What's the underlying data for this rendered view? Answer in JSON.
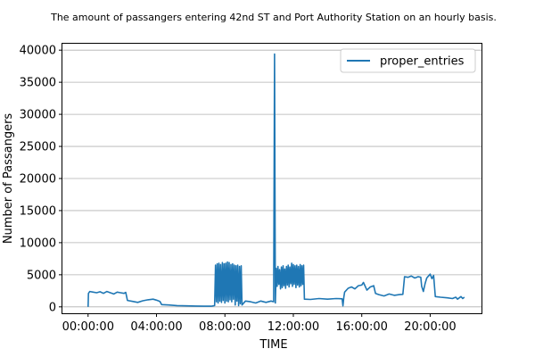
{
  "chart_data": {
    "type": "line",
    "title": "The amount of passangers entering 42nd ST and Port Authority Station on an hourly basis.",
    "xlabel": "TIME",
    "ylabel": "Number of Passangers",
    "xlim_hours": [
      -1.5,
      23.0
    ],
    "ylim": [
      -1000,
      41000
    ],
    "x_ticks": [
      {
        "hour": 0,
        "label": "00:00:00"
      },
      {
        "hour": 4,
        "label": "04:00:00"
      },
      {
        "hour": 8,
        "label": "08:00:00"
      },
      {
        "hour": 12,
        "label": "12:00:00"
      },
      {
        "hour": 16,
        "label": "16:00:00"
      },
      {
        "hour": 20,
        "label": "20:00:00"
      }
    ],
    "y_ticks": [
      {
        "value": 0,
        "label": "0"
      },
      {
        "value": 5000,
        "label": "5000"
      },
      {
        "value": 10000,
        "label": "10000"
      },
      {
        "value": 15000,
        "label": "15000"
      },
      {
        "value": 20000,
        "label": "20000"
      },
      {
        "value": 25000,
        "label": "25000"
      },
      {
        "value": 30000,
        "label": "30000"
      },
      {
        "value": 35000,
        "label": "35000"
      },
      {
        "value": 40000,
        "label": "40000"
      }
    ],
    "grid": "horizontal",
    "legend_position": "top-right",
    "series": [
      {
        "name": "proper_entries",
        "color": "#1f77b4",
        "points": [
          [
            0.0,
            0
          ],
          [
            0.02,
            2100
          ],
          [
            0.1,
            2400
          ],
          [
            0.3,
            2300
          ],
          [
            0.5,
            2200
          ],
          [
            0.7,
            2350
          ],
          [
            0.9,
            2100
          ],
          [
            1.1,
            2400
          ],
          [
            1.3,
            2200
          ],
          [
            1.5,
            2000
          ],
          [
            1.7,
            2300
          ],
          [
            1.9,
            2200
          ],
          [
            2.1,
            2100
          ],
          [
            2.2,
            2250
          ],
          [
            2.3,
            1000
          ],
          [
            2.6,
            850
          ],
          [
            2.9,
            700
          ],
          [
            3.2,
            950
          ],
          [
            3.5,
            1100
          ],
          [
            3.8,
            1200
          ],
          [
            4.0,
            1050
          ],
          [
            4.2,
            850
          ],
          [
            4.3,
            350
          ],
          [
            4.7,
            300
          ],
          [
            5.2,
            200
          ],
          [
            5.8,
            150
          ],
          [
            6.3,
            120
          ],
          [
            6.8,
            100
          ],
          [
            7.2,
            100
          ],
          [
            7.4,
            200
          ],
          [
            7.45,
            6500
          ],
          [
            7.5,
            800
          ],
          [
            7.55,
            6700
          ],
          [
            7.6,
            600
          ],
          [
            7.65,
            6800
          ],
          [
            7.7,
            900
          ],
          [
            7.75,
            6600
          ],
          [
            7.8,
            700
          ],
          [
            7.85,
            6900
          ],
          [
            7.9,
            1000
          ],
          [
            7.95,
            6700
          ],
          [
            8.0,
            600
          ],
          [
            8.05,
            6800
          ],
          [
            8.1,
            900
          ],
          [
            8.15,
            7000
          ],
          [
            8.2,
            800
          ],
          [
            8.25,
            6900
          ],
          [
            8.3,
            1100
          ],
          [
            8.35,
            6600
          ],
          [
            8.4,
            800
          ],
          [
            8.45,
            6700
          ],
          [
            8.5,
            1200
          ],
          [
            8.55,
            6500
          ],
          [
            8.6,
            300
          ],
          [
            8.65,
            6400
          ],
          [
            8.7,
            900
          ],
          [
            8.75,
            6500
          ],
          [
            8.8,
            200
          ],
          [
            8.85,
            6300
          ],
          [
            8.9,
            500
          ],
          [
            8.95,
            6400
          ],
          [
            9.0,
            300
          ],
          [
            9.2,
            900
          ],
          [
            9.5,
            800
          ],
          [
            9.8,
            600
          ],
          [
            10.1,
            900
          ],
          [
            10.4,
            700
          ],
          [
            10.7,
            900
          ],
          [
            10.85,
            800
          ],
          [
            10.9,
            39400
          ],
          [
            10.95,
            600
          ],
          [
            11.0,
            6000
          ],
          [
            11.05,
            3200
          ],
          [
            11.1,
            6300
          ],
          [
            11.15,
            3500
          ],
          [
            11.2,
            5800
          ],
          [
            11.25,
            2800
          ],
          [
            11.3,
            6200
          ],
          [
            11.35,
            3000
          ],
          [
            11.4,
            6400
          ],
          [
            11.45,
            3300
          ],
          [
            11.5,
            5900
          ],
          [
            11.55,
            2900
          ],
          [
            11.6,
            6300
          ],
          [
            11.65,
            3400
          ],
          [
            11.7,
            6500
          ],
          [
            11.75,
            3100
          ],
          [
            11.8,
            6200
          ],
          [
            11.85,
            3600
          ],
          [
            11.9,
            6800
          ],
          [
            11.95,
            3200
          ],
          [
            12.0,
            6600
          ],
          [
            12.05,
            3500
          ],
          [
            12.1,
            6400
          ],
          [
            12.15,
            3000
          ],
          [
            12.2,
            6500
          ],
          [
            12.25,
            3400
          ],
          [
            12.3,
            6300
          ],
          [
            12.35,
            3100
          ],
          [
            12.4,
            6600
          ],
          [
            12.45,
            3300
          ],
          [
            12.5,
            6400
          ],
          [
            12.55,
            3500
          ],
          [
            12.6,
            6500
          ],
          [
            12.65,
            1200
          ],
          [
            13.0,
            1150
          ],
          [
            13.5,
            1300
          ],
          [
            14.0,
            1200
          ],
          [
            14.5,
            1300
          ],
          [
            14.85,
            1250
          ],
          [
            14.9,
            150
          ],
          [
            14.95,
            1500
          ],
          [
            15.0,
            2300
          ],
          [
            15.2,
            2900
          ],
          [
            15.4,
            3100
          ],
          [
            15.6,
            2800
          ],
          [
            15.8,
            3300
          ],
          [
            16.0,
            3400
          ],
          [
            16.1,
            3800
          ],
          [
            16.3,
            2600
          ],
          [
            16.5,
            3100
          ],
          [
            16.7,
            3300
          ],
          [
            16.8,
            2100
          ],
          [
            17.0,
            1900
          ],
          [
            17.3,
            1700
          ],
          [
            17.6,
            2000
          ],
          [
            17.9,
            1800
          ],
          [
            18.2,
            1900
          ],
          [
            18.4,
            1950
          ],
          [
            18.5,
            4700
          ],
          [
            18.7,
            4600
          ],
          [
            18.9,
            4800
          ],
          [
            19.1,
            4500
          ],
          [
            19.3,
            4700
          ],
          [
            19.45,
            4600
          ],
          [
            19.5,
            3200
          ],
          [
            19.6,
            2400
          ],
          [
            19.7,
            3600
          ],
          [
            19.8,
            4500
          ],
          [
            19.9,
            4800
          ],
          [
            20.0,
            5100
          ],
          [
            20.1,
            4400
          ],
          [
            20.2,
            4900
          ],
          [
            20.3,
            1600
          ],
          [
            20.6,
            1500
          ],
          [
            21.0,
            1400
          ],
          [
            21.3,
            1300
          ],
          [
            21.5,
            1500
          ],
          [
            21.6,
            1200
          ],
          [
            21.7,
            1400
          ],
          [
            21.8,
            1600
          ],
          [
            21.9,
            1300
          ],
          [
            22.0,
            1500
          ]
        ]
      }
    ]
  }
}
